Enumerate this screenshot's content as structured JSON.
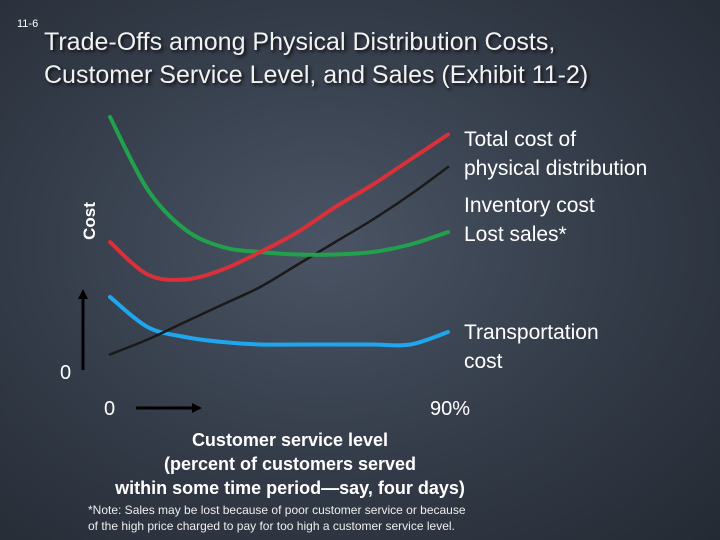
{
  "slide_number": "11-6",
  "title_lines": [
    "Trade-Offs among Physical Distribution Costs,",
    "Customer Service Level, and Sales (Exhibit 11-2)"
  ],
  "footnote_lines": [
    "*Note: Sales may be lost because of poor customer service or because",
    "of the high price charged to pay for too high a customer service level."
  ],
  "colors": {
    "total_cost": "#d9303a",
    "inventory_cost": "#1a1a1a",
    "lost_sales": "#22a14d",
    "transportation_cost": "#1ea7ef",
    "axes": "#000000"
  },
  "chart_data": {
    "type": "line",
    "title": "Trade-Offs among Physical Distribution Costs, Customer Service Level, and Sales (Exhibit 11-2)",
    "ylabel": "Cost",
    "xlabel_lines": [
      "Customer service level",
      "(percent of customers served",
      "within some time period—say, four days)"
    ],
    "x_start_label": "0",
    "x_end_label": "90%",
    "y_origin_label": "0",
    "xlim": [
      0,
      90
    ],
    "ylim": [
      0,
      100
    ],
    "x": [
      0,
      10,
      20,
      30,
      40,
      50,
      60,
      70,
      80,
      90
    ],
    "series": [
      {
        "name": "Total cost of physical distribution",
        "label_lines": [
          "Total cost of",
          "physical distribution"
        ],
        "color_key": "total_cost",
        "values": [
          48,
          35,
          33,
          37,
          44,
          52,
          62,
          71,
          81,
          91
        ]
      },
      {
        "name": "Inventory cost",
        "label_lines": [
          "Inventory cost"
        ],
        "color_key": "inventory_cost",
        "values": [
          3,
          9,
          16,
          23,
          30,
          39,
          48,
          57,
          67,
          78
        ]
      },
      {
        "name": "Lost sales*",
        "label_lines": [
          "Lost sales*"
        ],
        "color_key": "lost_sales",
        "values": [
          98,
          69,
          53,
          46,
          44,
          43,
          43,
          44,
          47,
          52
        ]
      },
      {
        "name": "Transportation cost",
        "label_lines": [
          "Transportation",
          "cost"
        ],
        "color_key": "transportation_cost",
        "values": [
          26,
          14,
          10,
          8,
          7,
          7,
          7,
          7,
          7,
          12
        ]
      }
    ]
  }
}
